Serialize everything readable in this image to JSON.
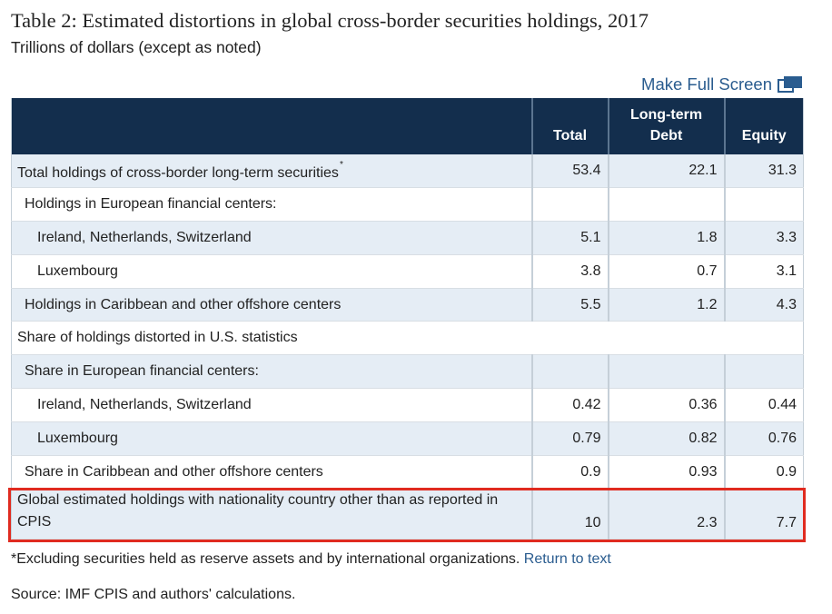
{
  "title": "Table 2: Estimated distortions in global cross-border securities holdings, 2017",
  "subtitle": "Trillions of dollars (except as noted)",
  "fullscreen_label": "Make Full Screen",
  "icons": {
    "fullscreen": "expand-screen-icon"
  },
  "colors": {
    "header_bg": "#132e4d",
    "row_shade": "#e5edf5",
    "link": "#2a5c8f",
    "highlight": "#e02b20"
  },
  "columns": {
    "label": "",
    "total": "Total",
    "ltd_line1": "Long-term",
    "ltd_line2": "Debt",
    "equity": "Equity"
  },
  "rows": [
    {
      "label": "Total holdings of cross-border long-term securities",
      "note": "*",
      "total": "53.4",
      "ltd": "22.1",
      "equity": "31.3"
    },
    {
      "label": "Holdings in European financial centers:",
      "total": "",
      "ltd": "",
      "equity": ""
    },
    {
      "label": "Ireland, Netherlands, Switzerland",
      "total": "5.1",
      "ltd": "1.8",
      "equity": "3.3"
    },
    {
      "label": "Luxembourg",
      "total": "3.8",
      "ltd": "0.7",
      "equity": "3.1"
    },
    {
      "label": "Holdings in Caribbean and other offshore centers",
      "total": "5.5",
      "ltd": "1.2",
      "equity": "4.3"
    },
    {
      "label": "Share of holdings distorted in U.S. statistics"
    },
    {
      "label": "Share in European financial centers:",
      "total": "",
      "ltd": "",
      "equity": ""
    },
    {
      "label": "Ireland, Netherlands, Switzerland",
      "total": "0.42",
      "ltd": "0.36",
      "equity": "0.44"
    },
    {
      "label": "Luxembourg",
      "total": "0.79",
      "ltd": "0.82",
      "equity": "0.76"
    },
    {
      "label": "Share in Caribbean and other offshore centers",
      "total": "0.9",
      "ltd": "0.93",
      "equity": "0.9"
    },
    {
      "label": "Global estimated holdings with nationality country other than as reported in CPIS",
      "total": "10",
      "ltd": "2.3",
      "equity": "7.7"
    }
  ],
  "footnote": {
    "text": "*Excluding securities held as reserve assets and by international organizations.",
    "link": "Return to text"
  },
  "source": "Source: IMF CPIS and authors' calculations."
}
